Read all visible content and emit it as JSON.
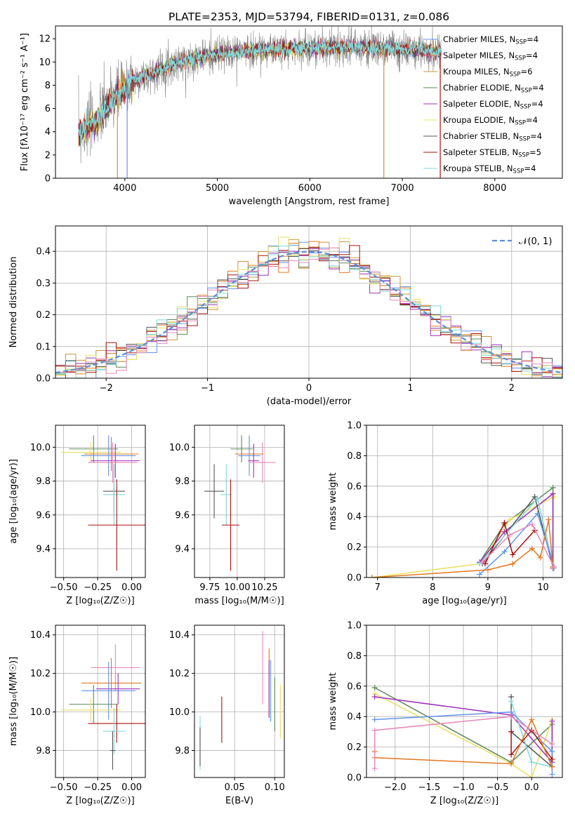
{
  "colors": {
    "chabrier_miles": "#6495ED",
    "salpeter_miles": "#E8735A",
    "kroupa_miles": "#C8963C",
    "chabrier_elodie": "#5A8A5A",
    "salpeter_elodie": "#9B30B8",
    "kroupa_elodie": "#E8E060",
    "chabrier_stelib": "#555555",
    "salpeter_stelib": "#AA1010",
    "kroupa_stelib": "#80D8D8",
    "orange": "#E07820",
    "pink": "#E888B8",
    "gauss": "#5B8FD6",
    "grey": "#808080"
  },
  "chart_data": [
    {
      "id": "spectrum",
      "type": "line",
      "title": "PLATE=2353, MJD=53794, FIBERID=0131, z=0.086",
      "xlabel": "wavelength [Angstrom, rest frame]",
      "ylabel": "Flux [fλ10⁻¹⁷ erg cm⁻² s⁻¹ A⁻¹]",
      "xlim": [
        3250,
        8730
      ],
      "ylim": [
        0,
        13.1
      ],
      "xticks": [
        "4000",
        "5000",
        "6000",
        "7000",
        "8000"
      ],
      "xtick_values": [
        4000,
        5000,
        6000,
        7000,
        8000
      ],
      "yticks": [
        "0",
        "2",
        "4",
        "6",
        "8",
        "10",
        "12"
      ],
      "ytick_values": [
        0,
        2,
        4,
        6,
        8,
        10,
        12
      ],
      "continuum": [
        [
          3500,
          3.8
        ],
        [
          3700,
          5.0
        ],
        [
          3900,
          7.0
        ],
        [
          4100,
          8.4
        ],
        [
          4300,
          9.0
        ],
        [
          4500,
          9.8
        ],
        [
          4800,
          10.4
        ],
        [
          5200,
          10.9
        ],
        [
          5600,
          11.1
        ],
        [
          6000,
          11.2
        ],
        [
          6400,
          11.3
        ],
        [
          6800,
          11.2
        ],
        [
          7200,
          11.0
        ],
        [
          7400,
          10.8
        ]
      ],
      "legend": [
        {
          "label": "Chabrier MILES, N",
          "sub": "SSP",
          "tail": "=4",
          "color": "chabrier_miles"
        },
        {
          "label": "Salpeter MILES, N",
          "sub": "SSP",
          "tail": "=4",
          "color": "salpeter_miles"
        },
        {
          "label": "Kroupa MILES, N",
          "sub": "SSP",
          "tail": "=6",
          "color": "kroupa_miles"
        },
        {
          "label": "Chabrier ELODIE, N",
          "sub": "SSP",
          "tail": "=4",
          "color": "chabrier_elodie"
        },
        {
          "label": "Salpeter ELODIE, N",
          "sub": "SSP",
          "tail": "=4",
          "color": "salpeter_elodie"
        },
        {
          "label": "Kroupa ELODIE, N",
          "sub": "SSP",
          "tail": "=4",
          "color": "kroupa_elodie"
        },
        {
          "label": "Chabrier STELIB, N",
          "sub": "SSP",
          "tail": "=4",
          "color": "chabrier_stelib"
        },
        {
          "label": "Salpeter STELIB, N",
          "sub": "SSP",
          "tail": "=5",
          "color": "salpeter_stelib"
        },
        {
          "label": "Kroupa STELIB, N",
          "sub": "SSP",
          "tail": "=4",
          "color": "kroupa_stelib"
        }
      ]
    },
    {
      "id": "residuals",
      "type": "line",
      "xlabel": "(data-model)/error",
      "ylabel": "Normed distribution",
      "xlim": [
        -2.5,
        2.5
      ],
      "ylim": [
        0,
        0.48
      ],
      "xticks": [
        "−2",
        "−1",
        "0",
        "1",
        "2"
      ],
      "xtick_values": [
        -2,
        -1,
        0,
        1,
        2
      ],
      "yticks": [
        "0.0",
        "0.1",
        "0.2",
        "0.3",
        "0.4"
      ],
      "ytick_values": [
        0,
        0.1,
        0.2,
        0.3,
        0.4
      ],
      "legend": "𝒩(0, 1)",
      "bin_width": 0.1,
      "series_colors": [
        "chabrier_miles",
        "orange",
        "kroupa_miles",
        "chabrier_elodie",
        "salpeter_elodie",
        "kroupa_elodie",
        "chabrier_stelib",
        "salpeter_stelib",
        "kroupa_stelib",
        "pink"
      ]
    },
    {
      "id": "age_vs_Z",
      "type": "scatter",
      "xlabel": "Z [log₁₀(Z/Z☉)]",
      "ylabel": "age  [log₁₀(age/yr)]",
      "xlim": [
        -0.56,
        0.1
      ],
      "ylim": [
        9.23,
        10.13
      ],
      "xticks": [
        "−0.50",
        "−0.25",
        "0.00"
      ],
      "xtick_values": [
        -0.5,
        -0.25,
        0
      ],
      "yticks": [
        "9.4",
        "9.6",
        "9.8",
        "10.0"
      ],
      "ytick_values": [
        9.4,
        9.6,
        9.8,
        10.0
      ],
      "points": [
        {
          "x": -0.28,
          "y": 9.99,
          "xerr": 0.18,
          "yerr": 0.08,
          "c": "chabrier_elodie"
        },
        {
          "x": -0.3,
          "y": 9.97,
          "xerr": 0.22,
          "yerr": 0.06,
          "c": "kroupa_elodie"
        },
        {
          "x": -0.15,
          "y": 9.96,
          "xerr": 0.2,
          "yerr": 0.1,
          "c": "orange"
        },
        {
          "x": -0.17,
          "y": 9.95,
          "xerr": 0.2,
          "yerr": 0.12,
          "c": "chabrier_miles"
        },
        {
          "x": -0.12,
          "y": 9.92,
          "xerr": 0.18,
          "yerr": 0.1,
          "c": "salpeter_elodie"
        },
        {
          "x": -0.14,
          "y": 9.91,
          "xerr": 0.18,
          "yerr": 0.12,
          "c": "pink"
        },
        {
          "x": -0.13,
          "y": 9.74,
          "xerr": 0.08,
          "yerr": 0.16,
          "c": "chabrier_stelib"
        },
        {
          "x": -0.13,
          "y": 9.72,
          "xerr": 0.08,
          "yerr": 0.18,
          "c": "kroupa_stelib"
        },
        {
          "x": -0.11,
          "y": 9.54,
          "xerr": 0.21,
          "yerr": 0.27,
          "c": "salpeter_stelib"
        }
      ]
    },
    {
      "id": "age_vs_mass",
      "type": "scatter",
      "xlabel": "mass [log₁₀(M/M☉)]",
      "ylabel": "",
      "xlim": [
        9.61,
        10.43
      ],
      "ylim": [
        9.23,
        10.13
      ],
      "xticks": [
        "9.75",
        "10.00",
        "10.25"
      ],
      "xtick_values": [
        9.75,
        10.0,
        10.25
      ],
      "yticks": [
        "9.4",
        "9.6",
        "9.8",
        "10.0"
      ],
      "ytick_values": [
        9.4,
        9.6,
        9.8,
        10.0
      ],
      "points": [
        {
          "x": 10.04,
          "y": 9.99,
          "xerr": 0.1,
          "yerr": 0.08,
          "c": "chabrier_elodie"
        },
        {
          "x": 10.11,
          "y": 9.96,
          "xerr": 0.13,
          "yerr": 0.1,
          "c": "orange"
        },
        {
          "x": 10.11,
          "y": 9.95,
          "xerr": 0.1,
          "yerr": 0.12,
          "c": "chabrier_miles"
        },
        {
          "x": 10.15,
          "y": 9.92,
          "xerr": 0.05,
          "yerr": 0.1,
          "c": "salpeter_elodie"
        },
        {
          "x": 10.23,
          "y": 9.91,
          "xerr": 0.12,
          "yerr": 0.12,
          "c": "pink"
        },
        {
          "x": 9.79,
          "y": 9.74,
          "xerr": 0.09,
          "yerr": 0.16,
          "c": "chabrier_stelib"
        },
        {
          "x": 9.9,
          "y": 9.72,
          "xerr": 0.05,
          "yerr": 0.18,
          "c": "kroupa_stelib"
        },
        {
          "x": 9.94,
          "y": 9.54,
          "xerr": 0.08,
          "yerr": 0.27,
          "c": "salpeter_stelib"
        }
      ]
    },
    {
      "id": "weight_vs_age",
      "type": "line",
      "xlabel": "age  [log₁₀(age/yr)]",
      "ylabel": "mass weight",
      "xlim": [
        6.8,
        10.35
      ],
      "ylim": [
        0,
        1.0
      ],
      "xticks": [
        "7",
        "8",
        "9",
        "10"
      ],
      "xtick_values": [
        7,
        8,
        9,
        10
      ],
      "yticks": [
        "0.0",
        "0.2",
        "0.4",
        "0.6",
        "0.8",
        "1.0"
      ],
      "ytick_values": [
        0,
        0.2,
        0.4,
        0.6,
        0.8,
        1.0
      ],
      "series": [
        {
          "c": "chabrier_elodie",
          "points": [
            [
              8.85,
              0.1
            ],
            [
              9.3,
              0.35
            ],
            [
              10.18,
              0.59
            ],
            [
              10.18,
              0.07
            ]
          ]
        },
        {
          "c": "kroupa_elodie",
          "points": [
            [
              6.9,
              0.0
            ],
            [
              8.85,
              0.09
            ],
            [
              9.4,
              0.38
            ],
            [
              10.2,
              0.53
            ]
          ]
        },
        {
          "c": "salpeter_elodie",
          "points": [
            [
              8.85,
              0.1
            ],
            [
              9.3,
              0.3
            ],
            [
              10.18,
              0.55
            ],
            [
              10.18,
              0.06
            ]
          ]
        },
        {
          "c": "chabrier_stelib",
          "points": [
            [
              8.9,
              0.09
            ],
            [
              9.85,
              0.53
            ],
            [
              10.18,
              0.07
            ]
          ]
        },
        {
          "c": "kroupa_stelib",
          "points": [
            [
              8.85,
              0.09
            ],
            [
              9.9,
              0.52
            ],
            [
              10.2,
              0.06
            ]
          ]
        },
        {
          "c": "chabrier_miles",
          "points": [
            [
              8.85,
              0.02
            ],
            [
              9.3,
              0.17
            ],
            [
              9.9,
              0.42
            ],
            [
              10.2,
              0.07
            ]
          ]
        },
        {
          "c": "salpeter_stelib",
          "points": [
            [
              8.95,
              0.09
            ],
            [
              9.3,
              0.36
            ],
            [
              9.45,
              0.15
            ],
            [
              9.85,
              0.31
            ]
          ]
        },
        {
          "c": "orange",
          "points": [
            [
              6.9,
              0.0
            ],
            [
              9.0,
              0.05
            ],
            [
              9.45,
              0.09
            ],
            [
              9.8,
              0.19
            ],
            [
              9.95,
              0.13
            ],
            [
              10.1,
              0.38
            ],
            [
              10.18,
              0.07
            ]
          ]
        },
        {
          "c": "pink",
          "points": [
            [
              8.9,
              0.1
            ],
            [
              9.4,
              0.28
            ],
            [
              9.8,
              0.35
            ],
            [
              10.2,
              0.07
            ]
          ]
        }
      ]
    },
    {
      "id": "mass_vs_Z",
      "type": "scatter",
      "xlabel": "Z [log₁₀(Z/Z☉)]",
      "ylabel": "mass [log₁₀(M/M☉)]",
      "xlim": [
        -0.56,
        0.1
      ],
      "ylim": [
        9.66,
        10.45
      ],
      "xticks": [
        "−0.50",
        "−0.25",
        "0.00"
      ],
      "xtick_values": [
        -0.5,
        -0.25,
        0
      ],
      "yticks": [
        "9.8",
        "10.0",
        "10.2",
        "10.4"
      ],
      "ytick_values": [
        9.8,
        10.0,
        10.2,
        10.4
      ],
      "points": [
        {
          "x": -0.12,
          "y": 10.23,
          "xerr": 0.18,
          "yerr": 0.12,
          "c": "pink"
        },
        {
          "x": -0.15,
          "y": 10.15,
          "xerr": 0.22,
          "yerr": 0.13,
          "c": "orange"
        },
        {
          "x": -0.1,
          "y": 10.12,
          "xerr": 0.16,
          "yerr": 0.08,
          "c": "salpeter_elodie"
        },
        {
          "x": -0.17,
          "y": 10.11,
          "xerr": 0.2,
          "yerr": 0.15,
          "c": "chabrier_miles"
        },
        {
          "x": -0.28,
          "y": 10.04,
          "xerr": 0.18,
          "yerr": 0.1,
          "c": "chabrier_elodie"
        },
        {
          "x": -0.3,
          "y": 10.01,
          "xerr": 0.22,
          "yerr": 0.06,
          "c": "kroupa_elodie"
        },
        {
          "x": -0.11,
          "y": 9.94,
          "xerr": 0.21,
          "yerr": 0.1,
          "c": "salpeter_stelib"
        },
        {
          "x": -0.13,
          "y": 9.9,
          "xerr": 0.08,
          "yerr": 0.12,
          "c": "kroupa_stelib"
        },
        {
          "x": -0.14,
          "y": 9.8,
          "xerr": 0.02,
          "yerr": 0.1,
          "c": "chabrier_stelib"
        }
      ]
    },
    {
      "id": "mass_vs_ebv",
      "type": "scatter",
      "xlabel": "E(B-V)",
      "ylabel": "",
      "xlim": [
        0.0,
        0.112
      ],
      "ylim": [
        9.66,
        10.45
      ],
      "xticks": [
        "0.05",
        "0.10"
      ],
      "xtick_values": [
        0.05,
        0.1
      ],
      "yticks": [
        "9.8",
        "10.0",
        "10.2",
        "10.4"
      ],
      "ytick_values": [
        9.8,
        10.0,
        10.2,
        10.4
      ],
      "points": [
        {
          "x": 0.085,
          "y": 10.23,
          "yerr": 0.19,
          "c": "pink"
        },
        {
          "x": 0.093,
          "y": 10.15,
          "yerr": 0.18,
          "c": "orange"
        },
        {
          "x": 0.093,
          "y": 10.12,
          "yerr": 0.15,
          "c": "salpeter_elodie"
        },
        {
          "x": 0.095,
          "y": 10.11,
          "yerr": 0.16,
          "c": "chabrier_miles"
        },
        {
          "x": 0.1,
          "y": 10.04,
          "yerr": 0.14,
          "c": "chabrier_elodie"
        },
        {
          "x": 0.107,
          "y": 10.0,
          "yerr": 0.14,
          "c": "kroupa_elodie"
        },
        {
          "x": 0.034,
          "y": 9.96,
          "yerr": 0.12,
          "c": "salpeter_stelib"
        },
        {
          "x": 0.007,
          "y": 9.84,
          "yerr": 0.14,
          "c": "kroupa_stelib"
        },
        {
          "x": 0.007,
          "y": 9.82,
          "yerr": 0.1,
          "c": "chabrier_stelib"
        }
      ]
    },
    {
      "id": "weight_vs_Z",
      "type": "line",
      "xlabel": "Z [log₁₀(Z/Z☉)]",
      "ylabel": "mass weight",
      "xlim": [
        -2.42,
        0.45
      ],
      "ylim": [
        0,
        1.0
      ],
      "xticks": [
        "−2.0",
        "−1.5",
        "−1.0",
        "−0.5",
        "0.0"
      ],
      "xtick_values": [
        -2.0,
        -1.5,
        -1.0,
        -0.5,
        0.0
      ],
      "yticks": [
        "0.0",
        "0.2",
        "0.4",
        "0.6",
        "0.8",
        "1.0"
      ],
      "ytick_values": [
        0,
        0.2,
        0.4,
        0.6,
        0.8,
        1.0
      ],
      "series": [
        {
          "c": "chabrier_elodie",
          "points": [
            [
              -2.3,
              0.59
            ],
            [
              -0.3,
              0.1
            ],
            [
              0.3,
              0.35
            ],
            [
              0.3,
              0.07
            ]
          ]
        },
        {
          "c": "kroupa_elodie",
          "points": [
            [
              -2.3,
              0.55
            ],
            [
              -0.3,
              0.09
            ],
            [
              0.0,
              0.0
            ],
            [
              0.3,
              0.38
            ]
          ]
        },
        {
          "c": "salpeter_elodie",
          "points": [
            [
              -2.3,
              0.53
            ],
            [
              -0.3,
              0.41
            ],
            [
              0.3,
              0.1
            ],
            [
              0.3,
              0.37
            ]
          ]
        },
        {
          "c": "chabrier_stelib",
          "points": [
            [
              -0.3,
              0.53
            ],
            [
              -0.3,
              0.3
            ],
            [
              0.3,
              0.07
            ]
          ]
        },
        {
          "c": "kroupa_stelib",
          "points": [
            [
              -0.3,
              0.5
            ],
            [
              0.0,
              0.1
            ],
            [
              0.3,
              0.07
            ]
          ]
        },
        {
          "c": "chabrier_miles",
          "points": [
            [
              -2.3,
              0.38
            ],
            [
              -0.3,
              0.43
            ],
            [
              0.3,
              0.17
            ],
            [
              0.3,
              0.02
            ]
          ]
        },
        {
          "c": "salpeter_stelib",
          "points": [
            [
              -0.3,
              0.3
            ],
            [
              -0.3,
              0.15
            ],
            [
              0.0,
              0.31
            ],
            [
              0.3,
              0.12
            ]
          ]
        },
        {
          "c": "orange",
          "points": [
            [
              -2.3,
              0.17
            ],
            [
              -2.3,
              0.13
            ],
            [
              -0.3,
              0.09
            ],
            [
              0.0,
              0.38
            ],
            [
              0.3,
              0.07
            ]
          ]
        },
        {
          "c": "pink",
          "points": [
            [
              -2.3,
              0.06
            ],
            [
              -2.3,
              0.31
            ],
            [
              -0.3,
              0.4
            ],
            [
              0.3,
              0.22
            ]
          ]
        }
      ]
    }
  ]
}
